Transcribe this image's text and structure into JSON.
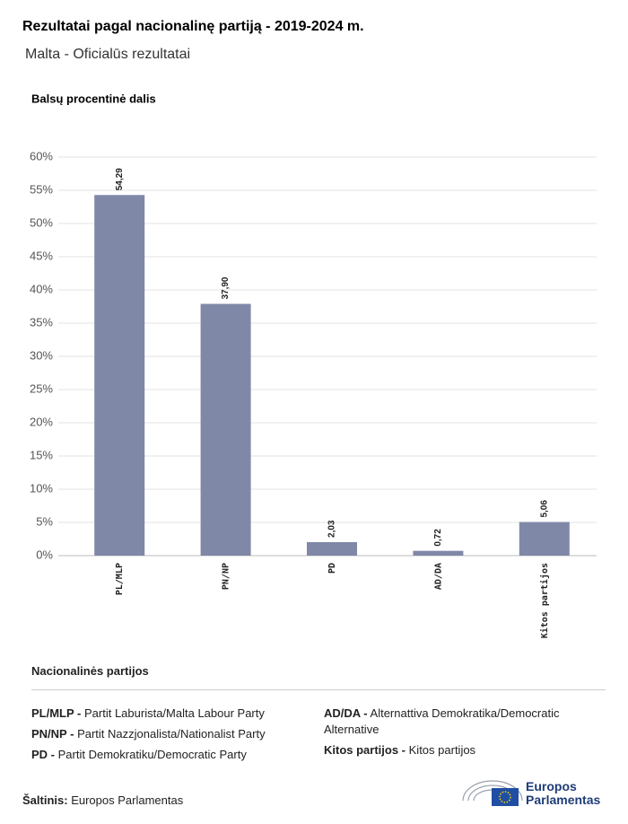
{
  "chart_data": {
    "type": "bar",
    "title": "Rezultatai pagal nacionalinę partiją - 2019-2024 m.",
    "subtitle": "Malta - Oficialūs rezultatai",
    "y_axis_label": "Balsų procentinė dalis",
    "categories": [
      "PL/MLP",
      "PN/NP",
      "PD",
      "AD/DA",
      "Kitos partijos"
    ],
    "values": [
      54.29,
      37.9,
      2.03,
      0.72,
      5.06
    ],
    "value_labels": [
      "54,29",
      "37,90",
      "2,03",
      "0,72",
      "5,06"
    ],
    "color": "#7f88a6",
    "ylim": [
      0,
      60
    ],
    "yticks": [
      {
        "value": 0,
        "label": "0%"
      },
      {
        "value": 5,
        "label": "5%"
      },
      {
        "value": 10,
        "label": "10%"
      },
      {
        "value": 15,
        "label": "15%"
      },
      {
        "value": 20,
        "label": "20%"
      },
      {
        "value": 25,
        "label": "25%"
      },
      {
        "value": 30,
        "label": "30%"
      },
      {
        "value": 35,
        "label": "35%"
      },
      {
        "value": 40,
        "label": "40%"
      },
      {
        "value": 45,
        "label": "45%"
      },
      {
        "value": 50,
        "label": "50%"
      },
      {
        "value": 55,
        "label": "55%"
      },
      {
        "value": 60,
        "label": "60%"
      }
    ],
    "grid": true
  },
  "legend_section": {
    "title": "Nacionalinės partijos",
    "items": [
      {
        "code": "PL/MLP -",
        "name": "Partit Laburista/Malta Labour Party"
      },
      {
        "code": "PN/NP -",
        "name": "Partit Nazzjonalista/Nationalist Party"
      },
      {
        "code": "PD -",
        "name": "Partit Demokratiku/Democratic Party"
      },
      {
        "code": "AD/DA -",
        "name": "Alternattiva Demokratika/Democratic Alternative"
      },
      {
        "code": "Kitos partijos -",
        "name": "Kitos partijos"
      }
    ]
  },
  "source": {
    "label": "Šaltinis:",
    "text": "Europos Parlamentas"
  },
  "logo": {
    "line1": "Europos",
    "line2": "Parlamentas"
  }
}
